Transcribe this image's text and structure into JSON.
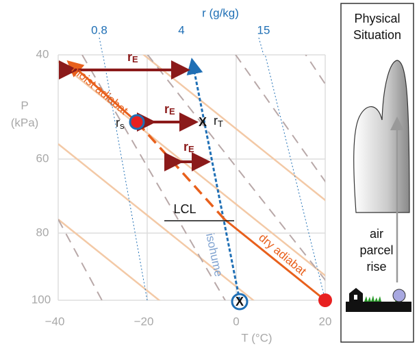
{
  "axes": {
    "y_label": [
      "P",
      "(kPa)"
    ],
    "y_ticks": [
      "40",
      "60",
      "80",
      "100"
    ],
    "x_label": "T (°C)",
    "x_ticks": [
      "−40",
      "−20",
      "0",
      "20"
    ]
  },
  "mixing_ratio": {
    "title": "r (g/kg)",
    "labels": [
      "0.8",
      "4",
      "15"
    ]
  },
  "annotations": {
    "r_E": {
      "base": "r",
      "sub": "E"
    },
    "r_s": {
      "base": "r",
      "sub": "s"
    },
    "r_T": {
      "base": "r",
      "sub": "T"
    },
    "x_mark": "X",
    "moist_adiabat": "moist adiabat",
    "dry_adiabat": "dry adiabat",
    "lcl": "LCL",
    "isohume": "isohume"
  },
  "panel": {
    "title": [
      "Physical",
      "Situation"
    ],
    "caption": [
      "air",
      "parcel",
      "rise"
    ]
  }
}
